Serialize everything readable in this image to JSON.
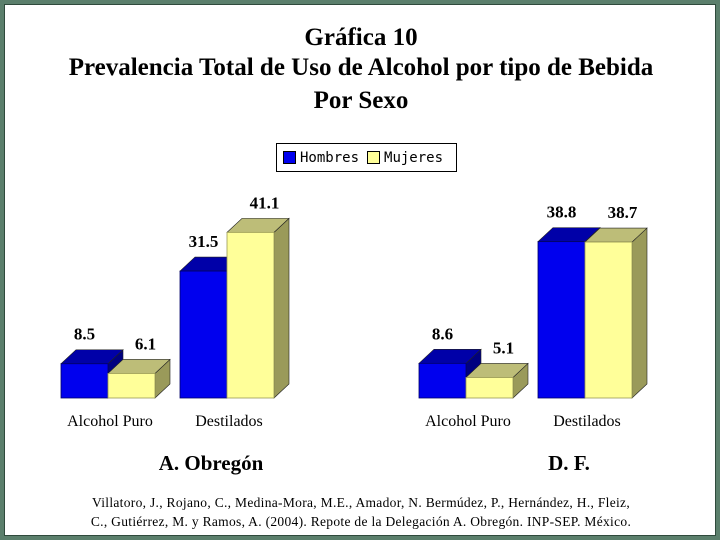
{
  "title": "Gráfica 10",
  "subtitle_line1": "Prevalencia Total de Uso de Alcohol por tipo de Bebida",
  "subtitle_line2": "Por Sexo",
  "citation_line1": "Villatoro, J., Rojano, C., Medina-Mora, M.E., Amador, N. Bermúdez, P., Hernández, H., Fleiz,",
  "citation_line2": "C., Gutiérrez, M. y Ramos, A. (2004). Repote de la Delegación A. Obregón. INP-SEP. México.",
  "colors": {
    "hombres": "#0000ee",
    "mujeres": "#ffff99",
    "background": "#5b7f6c"
  },
  "chart_data": {
    "type": "bar",
    "style": "3d-clustered",
    "legend": {
      "placement": "top-center",
      "entries": [
        "Hombres",
        "Mujeres"
      ]
    },
    "grid": false,
    "ylim": [
      0,
      45
    ],
    "groups": [
      {
        "name": "A. Obregón",
        "categories": [
          "Alcohol Puro",
          "Destilados"
        ],
        "series": [
          {
            "name": "Hombres",
            "values": [
              8.5,
              31.5
            ]
          },
          {
            "name": "Mujeres",
            "values": [
              6.1,
              41.1
            ]
          }
        ]
      },
      {
        "name": "D. F.",
        "categories": [
          "Alcohol Puro",
          "Destilados"
        ],
        "series": [
          {
            "name": "Hombres",
            "values": [
              8.6,
              38.8
            ]
          },
          {
            "name": "Mujeres",
            "values": [
              5.1,
              38.7
            ]
          }
        ]
      }
    ]
  }
}
